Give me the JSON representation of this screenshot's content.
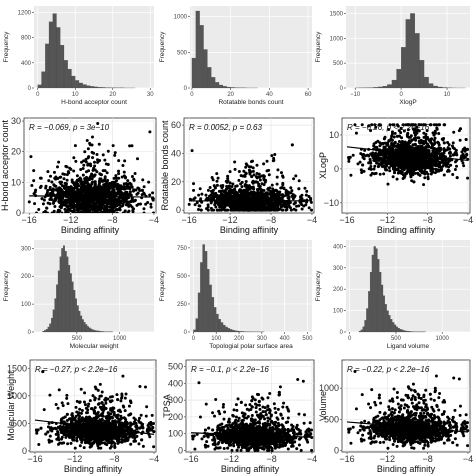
{
  "chart_data": [
    {
      "id": "hist-hbond",
      "type": "histogram",
      "xlabel": "H-bond acceptor count",
      "ylabel": "Frequency",
      "x_ticks": [
        0,
        10,
        20,
        30
      ],
      "y_ticks": [
        0,
        400,
        800,
        1200
      ],
      "xlim": [
        -1,
        31
      ],
      "ylim": [
        0,
        1300
      ],
      "bins": {
        "start": 0,
        "width": 1,
        "counts": [
          50,
          260,
          700,
          1050,
          1180,
          960,
          680,
          440,
          300,
          190,
          120,
          80,
          55,
          38,
          26,
          18,
          12,
          9,
          6,
          4,
          3,
          2,
          2,
          1,
          1,
          1,
          0,
          0,
          0,
          0
        ]
      }
    },
    {
      "id": "hist-rotb",
      "type": "histogram",
      "xlabel": "Rotatable bonds count",
      "ylabel": "Frequency",
      "x_ticks": [
        0,
        20,
        40,
        60
      ],
      "y_ticks": [
        0,
        500,
        1000
      ],
      "xlim": [
        -1,
        62
      ],
      "ylim": [
        0,
        1150
      ],
      "bins": {
        "start": 0,
        "width": 2,
        "counts": [
          420,
          1080,
          880,
          540,
          290,
          150,
          80,
          42,
          24,
          13,
          8,
          5,
          3,
          2,
          1,
          1,
          1,
          0,
          0,
          0,
          0,
          0,
          0,
          0,
          0,
          0,
          0,
          0,
          0,
          0
        ]
      }
    },
    {
      "id": "hist-xlogp",
      "type": "histogram",
      "xlabel": "XlogP",
      "ylabel": "Frequency",
      "x_ticks": [
        -10,
        0,
        10
      ],
      "y_ticks": [
        0,
        500,
        1000,
        1500
      ],
      "xlim": [
        -12,
        15
      ],
      "ylim": [
        0,
        1650
      ],
      "bins": {
        "start": -10,
        "width": 1,
        "counts": [
          2,
          3,
          5,
          8,
          14,
          22,
          38,
          70,
          160,
          380,
          820,
          1380,
          1500,
          1100,
          560,
          220,
          90,
          40,
          20,
          10,
          5,
          2,
          1,
          1
        ]
      }
    },
    {
      "id": "scatter-hbond",
      "type": "scatter",
      "xlabel": "Binding affinity",
      "ylabel": "H-bond acceptor count",
      "x_ticks": [
        -16,
        -12,
        -8,
        -4
      ],
      "y_ticks": [
        0,
        10,
        20,
        30
      ],
      "xlim": [
        -16.5,
        -3.8
      ],
      "ylim": [
        0,
        31
      ],
      "annotation": {
        "r": "R = −0.069, p = 3e−10"
      },
      "cloud": {
        "x_min": -16,
        "x_max": -4,
        "dense_x": -10,
        "y_base": 5,
        "y_spread": 3.5,
        "y_min": 0,
        "y_max": 30,
        "outlier_x": -8,
        "outlier_y": 28
      },
      "trend": {
        "x": [
          -16,
          -4
        ],
        "y": [
          5.6,
          5.2
        ]
      }
    },
    {
      "id": "scatter-rotb",
      "type": "scatter",
      "xlabel": "Binding affinity",
      "ylabel": "Rotatable bonds count",
      "x_ticks": [
        -16,
        -12,
        -8,
        -4
      ],
      "y_ticks": [
        0,
        20,
        40,
        60
      ],
      "xlim": [
        -16.5,
        -3.8
      ],
      "ylim": [
        -2,
        65
      ],
      "annotation": {
        "r": "R = 0.0052, p = 0.63"
      },
      "cloud": {
        "x_min": -16,
        "x_max": -4,
        "dense_x": -10,
        "y_base": 6,
        "y_spread": 5,
        "y_min": 0,
        "y_max": 62,
        "outlier_x": -7,
        "outlier_y": 55
      },
      "trend": {
        "x": [
          -16,
          -4
        ],
        "y": [
          6.5,
          6.6
        ]
      }
    },
    {
      "id": "scatter-xlogp",
      "type": "scatter",
      "xlabel": "Binding affinity",
      "ylabel": "XLogP",
      "x_ticks": [
        -16,
        -12,
        -8,
        -4
      ],
      "y_ticks": [
        -10,
        0,
        10
      ],
      "xlim": [
        -16.5,
        -3.8
      ],
      "ylim": [
        -13,
        15
      ],
      "annotation": {
        "r": "R = −0.26, p < 2.2e−16"
      },
      "cloud": {
        "x_min": -16,
        "x_max": -4,
        "dense_x": -9.5,
        "y_base": 3,
        "y_spread": 3,
        "y_min": -12,
        "y_max": 13,
        "outlier_x": -10,
        "outlier_y": 12
      },
      "trend": {
        "x": [
          -16,
          -4
        ],
        "y": [
          6.5,
          2.5
        ]
      }
    },
    {
      "id": "hist-mw",
      "type": "histogram",
      "xlabel": "Molecular weight",
      "ylabel": "Frequency",
      "x_ticks": [
        500,
        1000
      ],
      "y_ticks": [
        0,
        100,
        200,
        300
      ],
      "xlim": [
        0,
        1400
      ],
      "ylim": [
        0,
        330
      ],
      "bins": {
        "start": 100,
        "width": 20,
        "counts": [
          3,
          6,
          10,
          18,
          30,
          50,
          80,
          120,
          170,
          220,
          270,
          300,
          310,
          290,
          270,
          240,
          210,
          180,
          150,
          120,
          95,
          75,
          58,
          45,
          35,
          27,
          20,
          15,
          11,
          8,
          6,
          5,
          4,
          3,
          2,
          2,
          1,
          1,
          1,
          1,
          1
        ]
      }
    },
    {
      "id": "hist-tpsa",
      "type": "histogram",
      "xlabel": "Topologial polar surface area",
      "ylabel": "Frequency",
      "x_ticks": [
        0,
        100,
        200,
        300,
        400,
        500
      ],
      "y_ticks": [
        0,
        250,
        500,
        750
      ],
      "xlim": [
        -15,
        520
      ],
      "ylim": [
        0,
        820
      ],
      "bins": {
        "start": 0,
        "width": 10,
        "counts": [
          20,
          120,
          350,
          620,
          780,
          720,
          560,
          420,
          310,
          220,
          160,
          115,
          85,
          62,
          45,
          33,
          24,
          17,
          12,
          9,
          6,
          5,
          4,
          3,
          2,
          2,
          1,
          1,
          1,
          1,
          1,
          0,
          0,
          0,
          0,
          0,
          0,
          0,
          0,
          0
        ]
      }
    },
    {
      "id": "hist-volume",
      "type": "histogram",
      "xlabel": "Ligand volume",
      "ylabel": "Frequency",
      "x_ticks": [
        0,
        500,
        1000
      ],
      "y_ticks": [
        0,
        100,
        200,
        300,
        400
      ],
      "xlim": [
        -40,
        1300
      ],
      "ylim": [
        0,
        430
      ],
      "bins": {
        "start": 100,
        "width": 20,
        "counts": [
          4,
          10,
          25,
          55,
          110,
          190,
          280,
          360,
          400,
          390,
          340,
          280,
          220,
          170,
          130,
          100,
          78,
          60,
          45,
          34,
          25,
          18,
          13,
          10,
          7,
          5,
          4,
          3,
          2,
          2,
          1,
          1,
          1,
          1,
          1,
          1,
          0,
          0,
          0,
          0
        ]
      }
    },
    {
      "id": "scatter-mw",
      "type": "scatter",
      "xlabel": "Binding affinity",
      "ylabel": "Molecular Weight",
      "x_ticks": [
        -16,
        -12,
        -8,
        -4
      ],
      "y_ticks": [
        0,
        500,
        1000,
        1500
      ],
      "xlim": [
        -16.5,
        -3.8
      ],
      "ylim": [
        -20,
        1650
      ],
      "annotation": {
        "r": "R = −0.27, p < 2.2e−16"
      },
      "cloud": {
        "x_min": -16,
        "x_max": -4,
        "dense_x": -9.5,
        "y_base": 360,
        "y_spread": 150,
        "y_min": 50,
        "y_max": 1600,
        "outlier_x": -8,
        "outlier_y": 1300
      },
      "trend": {
        "x": [
          -16,
          -4
        ],
        "y": [
          560,
          300
        ]
      }
    },
    {
      "id": "scatter-tpsa",
      "type": "scatter",
      "xlabel": "Binding affinity",
      "ylabel": "TPSA",
      "x_ticks": [
        -16,
        -12,
        -8,
        -4
      ],
      "y_ticks": [
        0,
        100,
        200,
        300,
        400,
        500
      ],
      "xlim": [
        -16.5,
        -3.8
      ],
      "ylim": [
        -10,
        540
      ],
      "annotation": {
        "r": "R = −0.1, p < 2.2e−16"
      },
      "cloud": {
        "x_min": -16,
        "x_max": -4,
        "dense_x": -9.5,
        "y_base": 80,
        "y_spread": 45,
        "y_min": 0,
        "y_max": 520,
        "outlier_x": -6,
        "outlier_y": 480
      },
      "trend": {
        "x": [
          -16,
          -4
        ],
        "y": [
          105,
          78
        ]
      }
    },
    {
      "id": "scatter-volume",
      "type": "scatter",
      "xlabel": "Binding affinity",
      "ylabel": "Volume",
      "x_ticks": [
        -16,
        -12,
        -8,
        -4
      ],
      "y_ticks": [
        0,
        500,
        1000
      ],
      "xlim": [
        -16.5,
        -3.8
      ],
      "ylim": [
        -20,
        1450
      ],
      "annotation": {
        "r": "R = −0.22, p < 2.2e−16"
      },
      "cloud": {
        "x_min": -16,
        "x_max": -4,
        "dense_x": -9.5,
        "y_base": 330,
        "y_spread": 130,
        "y_min": 40,
        "y_max": 1400,
        "outlier_x": -8,
        "outlier_y": 1300
      },
      "trend": {
        "x": [
          -16,
          -4
        ],
        "y": [
          460,
          300
        ]
      }
    }
  ],
  "colors": {
    "histogram_fill": "#555555",
    "histogram_bg": "#ebebeb",
    "grid": "#ffffff",
    "points": "#000000",
    "trend": "#000000",
    "scatter_bg": "#ffffff",
    "scatter_grid": "#e6e6e6"
  }
}
